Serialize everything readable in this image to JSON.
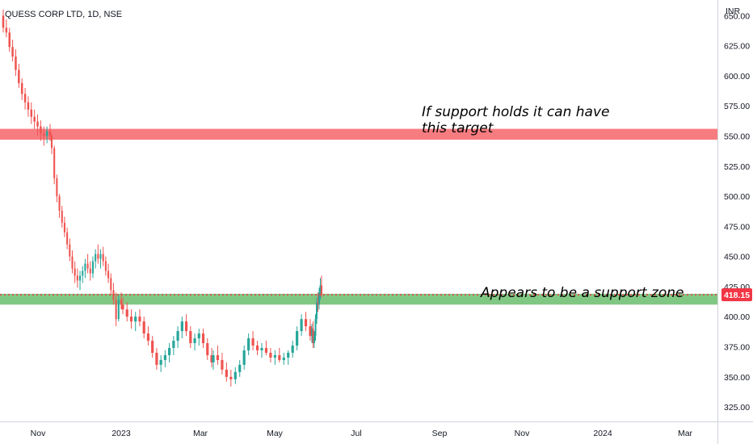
{
  "header": {
    "symbol_title": "QUESS CORP LTD, 1D, NSE",
    "currency": "INR"
  },
  "colors": {
    "up": "#26a69a",
    "down": "#ef5350",
    "resistance_zone": "#f77c80",
    "support_zone": "#81c784",
    "price_line": "#f23645",
    "axis_text": "#131722",
    "axis_line": "#d1d4dc"
  },
  "annotations": {
    "target_note_line1": "If support holds it can have",
    "target_note_line2": "this target",
    "support_note": "Appears to be a support zone"
  },
  "chart_data": {
    "type": "candlestick",
    "x_axis_labels": [
      "Nov",
      "2023",
      "Mar",
      "May",
      "Jul",
      "Sep",
      "Nov",
      "2024",
      "Mar"
    ],
    "y_axis_labels": [
      "325.00",
      "350.00",
      "375.00",
      "400.00",
      "425.00",
      "450.00",
      "475.00",
      "500.00",
      "525.00",
      "550.00",
      "575.00",
      "600.00",
      "625.00",
      "650.00"
    ],
    "ylim": [
      313,
      663
    ],
    "last_price": 418.15,
    "last_price_label": "418.15",
    "zones": [
      {
        "kind": "resistance",
        "from": 547,
        "to": 556
      },
      {
        "kind": "support",
        "from": 410,
        "to": 419
      }
    ],
    "series": [
      {
        "period": "start-Nov",
        "points": [
          [
            650,
            655,
            636,
            640
          ],
          [
            640,
            647,
            632,
            636
          ],
          [
            636,
            640,
            620,
            624
          ],
          [
            624,
            630,
            612,
            616
          ],
          [
            616,
            622,
            600,
            605
          ],
          [
            605,
            610,
            590,
            594
          ],
          [
            594,
            598,
            580,
            585
          ],
          [
            585,
            590,
            572,
            578
          ],
          [
            578,
            583,
            566,
            572
          ],
          [
            572,
            578,
            560,
            566
          ],
          [
            566,
            572,
            556,
            562
          ],
          [
            562,
            568,
            550,
            558
          ],
          [
            558,
            563,
            546,
            552
          ],
          [
            552,
            558,
            542,
            550
          ],
          [
            550,
            558,
            544,
            554
          ],
          [
            554,
            560,
            546,
            550
          ]
        ]
      },
      {
        "period": "Nov-2023",
        "points": [
          [
            550,
            552,
            535,
            540
          ],
          [
            540,
            542,
            510,
            515
          ],
          [
            515,
            518,
            495,
            500
          ],
          [
            500,
            502,
            482,
            488
          ],
          [
            488,
            492,
            474,
            478
          ],
          [
            478,
            483,
            466,
            470
          ],
          [
            470,
            474,
            456,
            460
          ],
          [
            460,
            465,
            446,
            450
          ],
          [
            450,
            455,
            436,
            440
          ],
          [
            440,
            446,
            428,
            434
          ],
          [
            434,
            440,
            424,
            430
          ],
          [
            430,
            438,
            422,
            434
          ],
          [
            434,
            442,
            428,
            438
          ],
          [
            438,
            448,
            432,
            444
          ],
          [
            444,
            452,
            436,
            440
          ],
          [
            440,
            446,
            430,
            436
          ],
          [
            436,
            450,
            432,
            446
          ],
          [
            446,
            456,
            440,
            452
          ],
          [
            452,
            460,
            444,
            448
          ],
          [
            448,
            456,
            440,
            452
          ],
          [
            452,
            458,
            442,
            446
          ],
          [
            446,
            450,
            434,
            438
          ],
          [
            438,
            444,
            428,
            432
          ],
          [
            432,
            436,
            418,
            422
          ],
          [
            422,
            428,
            410,
            414
          ],
          [
            414,
            420,
            392,
            398
          ],
          [
            398,
            418,
            396,
            414
          ],
          [
            414,
            420,
            406,
            410
          ]
        ]
      },
      {
        "period": "2023-Mar",
        "points": [
          [
            410,
            416,
            402,
            406
          ],
          [
            406,
            412,
            396,
            400
          ],
          [
            400,
            406,
            390,
            396
          ],
          [
            396,
            404,
            388,
            400
          ],
          [
            400,
            406,
            392,
            396
          ],
          [
            396,
            400,
            382,
            386
          ],
          [
            386,
            392,
            376,
            380
          ],
          [
            380,
            384,
            366,
            370
          ],
          [
            370,
            374,
            356,
            360
          ],
          [
            360,
            368,
            354,
            364
          ],
          [
            364,
            372,
            358,
            368
          ],
          [
            368,
            378,
            362,
            374
          ],
          [
            374,
            384,
            368,
            380
          ],
          [
            380,
            392,
            374,
            388
          ],
          [
            388,
            400,
            382,
            396
          ],
          [
            396,
            402,
            384,
            388
          ],
          [
            388,
            392,
            374,
            378
          ],
          [
            378,
            386,
            372,
            382
          ],
          [
            382,
            390,
            376,
            386
          ],
          [
            386,
            390,
            374,
            378
          ],
          [
            378,
            382,
            364,
            368
          ],
          [
            368,
            374,
            358,
            362
          ]
        ]
      },
      {
        "period": "Mar-May",
        "points": [
          [
            362,
            372,
            356,
            368
          ],
          [
            368,
            376,
            360,
            364
          ],
          [
            364,
            370,
            352,
            356
          ],
          [
            356,
            362,
            346,
            350
          ],
          [
            350,
            356,
            342,
            348
          ],
          [
            348,
            358,
            344,
            354
          ],
          [
            354,
            364,
            350,
            360
          ],
          [
            360,
            376,
            356,
            372
          ],
          [
            372,
            386,
            368,
            382
          ],
          [
            382,
            388,
            372,
            376
          ],
          [
            376,
            380,
            368,
            372
          ],
          [
            372,
            378,
            366,
            374
          ],
          [
            374,
            380,
            368,
            370
          ],
          [
            370,
            374,
            362,
            366
          ],
          [
            366,
            372,
            360,
            368
          ],
          [
            368,
            374,
            362,
            364
          ],
          [
            364,
            370,
            360,
            366
          ],
          [
            366,
            372,
            360,
            370
          ],
          [
            370,
            380,
            366,
            376
          ],
          [
            376,
            392,
            372,
            388
          ],
          [
            388,
            402,
            384,
            398
          ],
          [
            398,
            404,
            388,
            392
          ],
          [
            392,
            398,
            380,
            384
          ]
        ]
      },
      {
        "period": "May-end",
        "points": [
          [
            384,
            394,
            378,
            390
          ],
          [
            390,
            396,
            374,
            378
          ],
          [
            378,
            388,
            374,
            384
          ],
          [
            384,
            402,
            380,
            398
          ],
          [
            398,
            416,
            394,
            412
          ],
          [
            412,
            420,
            404,
            410
          ],
          [
            410,
            424,
            406,
            420
          ],
          [
            420,
            432,
            414,
            426
          ],
          [
            426,
            434,
            416,
            418
          ]
        ]
      }
    ]
  }
}
